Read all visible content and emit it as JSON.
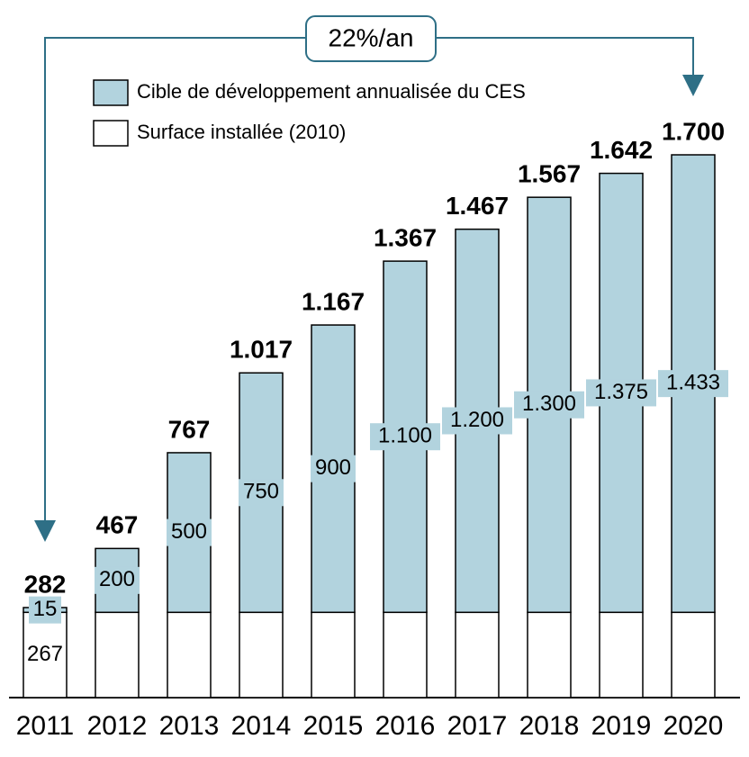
{
  "chart_data": {
    "type": "stacked_bar",
    "categories": [
      "2011",
      "2012",
      "2013",
      "2014",
      "2015",
      "2016",
      "2017",
      "2018",
      "2019",
      "2020"
    ],
    "series": [
      {
        "name": "Surface installée (2010)",
        "color": "#ffffff",
        "values": [
          267,
          267,
          267,
          267,
          267,
          267,
          267,
          267,
          267,
          267
        ],
        "value_labels": [
          "267",
          null,
          null,
          null,
          null,
          null,
          null,
          null,
          null,
          null
        ]
      },
      {
        "name": "Cible de développement annualisée du CES",
        "color": "#b2d3de",
        "values": [
          15,
          200,
          500,
          750,
          900,
          1100,
          1200,
          1300,
          1375,
          1433
        ],
        "value_labels": [
          "15",
          "200",
          "500",
          "750",
          "900",
          "1.100",
          "1.200",
          "1.300",
          "1.375",
          "1.433"
        ]
      }
    ],
    "totals": {
      "values": [
        282,
        467,
        767,
        1017,
        1167,
        1367,
        1467,
        1567,
        1642,
        1700
      ],
      "value_labels": [
        "282",
        "467",
        "767",
        "1.017",
        "1.167",
        "1.367",
        "1.467",
        "1.567",
        "1.642",
        "1.700"
      ]
    },
    "annotation": "22%/an",
    "ylim": [
      0,
      1700
    ]
  }
}
